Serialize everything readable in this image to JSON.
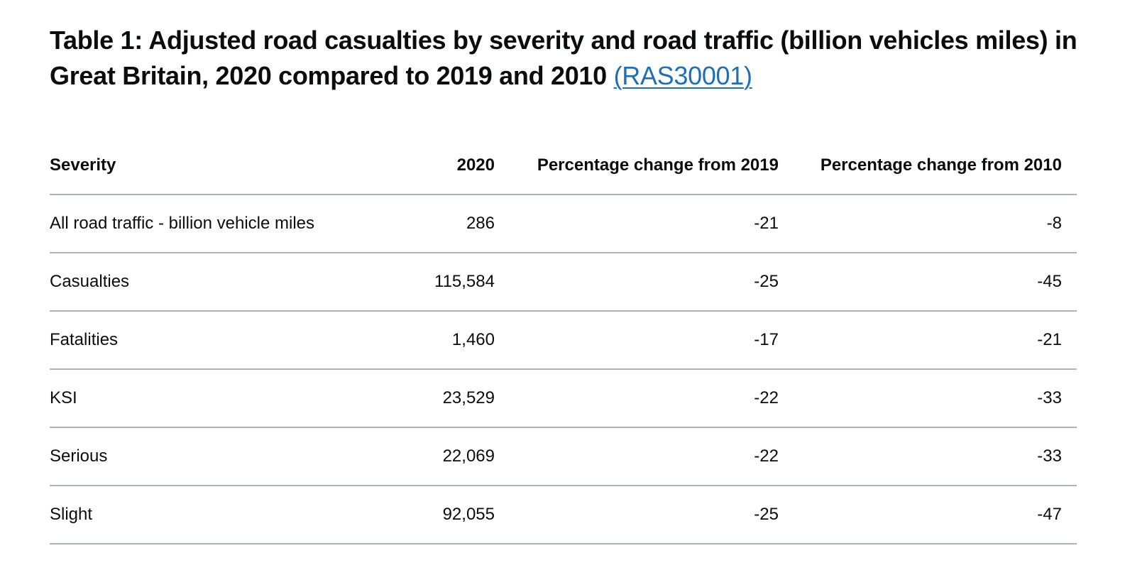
{
  "title": {
    "text": "Table 1: Adjusted road casualties by severity and road traffic (billion vehicles miles) in Great Britain, 2020 compared to 2019 and 2010",
    "link_label": "(RAS30001)"
  },
  "table": {
    "headers": [
      "Severity",
      "2020",
      "Percentage change from 2019",
      "Percentage change from 2010"
    ],
    "rows": [
      {
        "severity": "All road traffic - billion vehicle miles",
        "v2020": "286",
        "chg2019": "-21",
        "chg2010": "-8"
      },
      {
        "severity": "Casualties",
        "v2020": "115,584",
        "chg2019": "-25",
        "chg2010": "-45"
      },
      {
        "severity": "Fatalities",
        "v2020": "1,460",
        "chg2019": "-17",
        "chg2010": "-21"
      },
      {
        "severity": "KSI",
        "v2020": "23,529",
        "chg2019": "-22",
        "chg2010": "-33"
      },
      {
        "severity": "Serious",
        "v2020": "22,069",
        "chg2019": "-22",
        "chg2010": "-33"
      },
      {
        "severity": "Slight",
        "v2020": "92,055",
        "chg2019": "-25",
        "chg2010": "-47"
      }
    ]
  },
  "colors": {
    "text": "#0b0c0c",
    "link": "#1d70b8",
    "rule": "#b1b4b6"
  }
}
